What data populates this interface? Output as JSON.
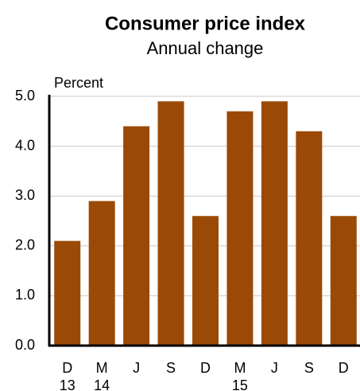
{
  "chart_data": {
    "type": "bar",
    "title": "Consumer price index",
    "subtitle": "Annual change",
    "y_label": "Percent",
    "categories": [
      "D",
      "M",
      "J",
      "S",
      "D",
      "M",
      "J",
      "S",
      "D"
    ],
    "year_labels": [
      "13",
      "14",
      null,
      null,
      null,
      "15",
      null,
      null,
      null
    ],
    "values": [
      2.1,
      2.9,
      4.4,
      4.9,
      2.6,
      4.7,
      4.9,
      4.3,
      2.6
    ],
    "color": "#9a4a06",
    "ylim": [
      0,
      5
    ],
    "yticks": [
      {
        "value": 0,
        "label": "0.0"
      },
      {
        "value": 1,
        "label": "1.0"
      },
      {
        "value": 2,
        "label": "2.0"
      },
      {
        "value": 3,
        "label": "3.0"
      },
      {
        "value": 4,
        "label": "4.0"
      },
      {
        "value": 5,
        "label": "5.0"
      }
    ],
    "grid": true
  }
}
